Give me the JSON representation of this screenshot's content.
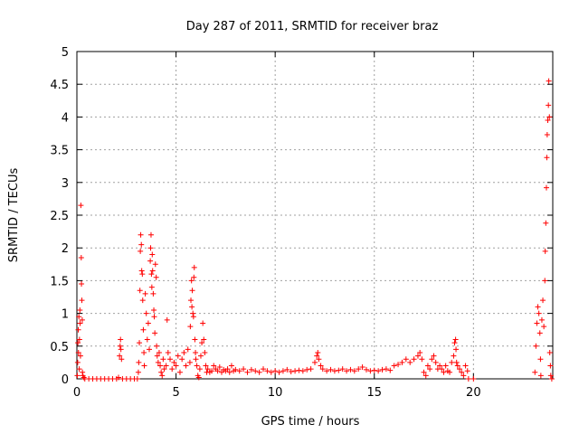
{
  "chart_data": {
    "type": "scatter",
    "title": "Day 287 of 2011, SRMTID for receiver braz",
    "xlabel": "GPS time / hours",
    "ylabel": "SRMTID / TECUs",
    "xlim": [
      0,
      24
    ],
    "ylim": [
      0,
      5
    ],
    "x_ticks": [
      0,
      5,
      10,
      15,
      20
    ],
    "x_tick_labels": [
      "0",
      "5",
      "10",
      "15",
      "20"
    ],
    "y_ticks": [
      0,
      0.5,
      1,
      1.5,
      2,
      2.5,
      3,
      3.5,
      4,
      4.5,
      5
    ],
    "y_tick_labels": [
      "0",
      "0.5",
      "1",
      "1.5",
      "2",
      "2.5",
      "3",
      "3.5",
      "4",
      "4.5",
      "5"
    ],
    "grid": true,
    "legend": "none",
    "marker": "plus",
    "series": [
      {
        "color": "#ff0000",
        "points": [
          [
            0.02,
            0.05
          ],
          [
            0.04,
            0.25
          ],
          [
            0.05,
            0.55
          ],
          [
            0.07,
            0.75
          ],
          [
            0.08,
            0.4
          ],
          [
            0.1,
            0.95
          ],
          [
            0.12,
            0.15
          ],
          [
            0.13,
            0.6
          ],
          [
            0.15,
            1.05
          ],
          [
            0.16,
            0.85
          ],
          [
            0.18,
            0.35
          ],
          [
            0.2,
            2.65
          ],
          [
            0.22,
            1.85
          ],
          [
            0.23,
            1.45
          ],
          [
            0.25,
            1.2
          ],
          [
            0.27,
            0.9
          ],
          [
            0.28,
            0.1
          ],
          [
            0.3,
            0.05
          ],
          [
            0.35,
            0.02
          ],
          [
            0.4,
            0.0
          ],
          [
            0.6,
            0.0
          ],
          [
            0.8,
            0.0
          ],
          [
            1.0,
            0.0
          ],
          [
            1.2,
            0.0
          ],
          [
            1.4,
            0.0
          ],
          [
            1.6,
            0.0
          ],
          [
            1.8,
            0.0
          ],
          [
            2.0,
            0.0
          ],
          [
            2.1,
            0.02
          ],
          [
            2.15,
            0.35
          ],
          [
            2.18,
            0.5
          ],
          [
            2.2,
            0.6
          ],
          [
            2.22,
            0.45
          ],
          [
            2.25,
            0.3
          ],
          [
            2.3,
            0.0
          ],
          [
            2.5,
            0.0
          ],
          [
            2.7,
            0.0
          ],
          [
            2.9,
            0.0
          ],
          [
            3.05,
            0.0
          ],
          [
            3.1,
            0.1
          ],
          [
            3.12,
            0.25
          ],
          [
            3.15,
            0.55
          ],
          [
            3.18,
            1.35
          ],
          [
            3.2,
            1.95
          ],
          [
            3.22,
            2.2
          ],
          [
            3.25,
            2.05
          ],
          [
            3.27,
            1.65
          ],
          [
            3.3,
            1.6
          ],
          [
            3.32,
            1.2
          ],
          [
            3.35,
            0.75
          ],
          [
            3.38,
            0.4
          ],
          [
            3.4,
            0.2
          ],
          [
            3.45,
            1.3
          ],
          [
            3.5,
            1.0
          ],
          [
            3.55,
            0.6
          ],
          [
            3.6,
            0.85
          ],
          [
            3.65,
            0.45
          ],
          [
            3.7,
            1.8
          ],
          [
            3.72,
            2.0
          ],
          [
            3.74,
            2.2
          ],
          [
            3.76,
            1.6
          ],
          [
            3.78,
            1.4
          ],
          [
            3.8,
            1.9
          ],
          [
            3.82,
            1.65
          ],
          [
            3.85,
            1.3
          ],
          [
            3.88,
            1.05
          ],
          [
            3.9,
            0.95
          ],
          [
            3.93,
            0.7
          ],
          [
            3.96,
            1.75
          ],
          [
            4.0,
            1.55
          ],
          [
            4.02,
            0.5
          ],
          [
            4.05,
            0.35
          ],
          [
            4.1,
            0.25
          ],
          [
            4.15,
            0.4
          ],
          [
            4.2,
            0.2
          ],
          [
            4.25,
            0.1
          ],
          [
            4.3,
            0.05
          ],
          [
            4.35,
            0.3
          ],
          [
            4.4,
            0.15
          ],
          [
            4.5,
            0.2
          ],
          [
            4.6,
            0.4
          ],
          [
            4.7,
            0.3
          ],
          [
            4.8,
            0.15
          ],
          [
            4.9,
            0.25
          ],
          [
            5.0,
            0.2
          ],
          [
            5.1,
            0.35
          ],
          [
            5.2,
            0.1
          ],
          [
            5.3,
            0.3
          ],
          [
            5.4,
            0.4
          ],
          [
            5.5,
            0.2
          ],
          [
            5.6,
            0.45
          ],
          [
            5.7,
            0.25
          ],
          [
            4.55,
            0.9
          ],
          [
            5.72,
            0.8
          ],
          [
            5.75,
            1.2
          ],
          [
            5.78,
            1.5
          ],
          [
            5.8,
            1.1
          ],
          [
            5.82,
            1.35
          ],
          [
            5.85,
            1.0
          ],
          [
            5.88,
            0.95
          ],
          [
            5.9,
            1.55
          ],
          [
            5.92,
            1.7
          ],
          [
            5.95,
            0.6
          ],
          [
            5.98,
            0.4
          ],
          [
            6.0,
            0.3
          ],
          [
            6.05,
            0.2
          ],
          [
            6.1,
            0.05
          ],
          [
            6.15,
            0.02
          ],
          [
            6.2,
            0.15
          ],
          [
            6.25,
            0.35
          ],
          [
            6.3,
            0.55
          ],
          [
            6.35,
            0.85
          ],
          [
            6.4,
            0.6
          ],
          [
            6.45,
            0.4
          ],
          [
            6.5,
            0.2
          ],
          [
            6.55,
            0.1
          ],
          [
            6.6,
            0.15
          ],
          [
            6.7,
            0.1
          ],
          [
            6.8,
            0.12
          ],
          [
            6.9,
            0.2
          ],
          [
            7.0,
            0.15
          ],
          [
            7.1,
            0.12
          ],
          [
            7.2,
            0.18
          ],
          [
            7.3,
            0.1
          ],
          [
            7.4,
            0.14
          ],
          [
            7.5,
            0.12
          ],
          [
            7.6,
            0.15
          ],
          [
            7.7,
            0.1
          ],
          [
            7.8,
            0.2
          ],
          [
            7.9,
            0.12
          ],
          [
            8.0,
            0.14
          ],
          [
            8.2,
            0.12
          ],
          [
            8.4,
            0.15
          ],
          [
            8.6,
            0.1
          ],
          [
            8.8,
            0.14
          ],
          [
            9.0,
            0.12
          ],
          [
            9.2,
            0.1
          ],
          [
            9.4,
            0.15
          ],
          [
            9.6,
            0.12
          ],
          [
            9.8,
            0.1
          ],
          [
            10.0,
            0.12
          ],
          [
            10.2,
            0.1
          ],
          [
            10.4,
            0.12
          ],
          [
            10.6,
            0.14
          ],
          [
            10.8,
            0.11
          ],
          [
            11.0,
            0.12
          ],
          [
            11.2,
            0.13
          ],
          [
            11.4,
            0.12
          ],
          [
            11.6,
            0.14
          ],
          [
            11.8,
            0.15
          ],
          [
            12.0,
            0.25
          ],
          [
            12.1,
            0.35
          ],
          [
            12.15,
            0.4
          ],
          [
            12.2,
            0.3
          ],
          [
            12.3,
            0.2
          ],
          [
            12.4,
            0.15
          ],
          [
            12.6,
            0.12
          ],
          [
            12.8,
            0.14
          ],
          [
            13.0,
            0.12
          ],
          [
            13.2,
            0.13
          ],
          [
            13.4,
            0.15
          ],
          [
            13.6,
            0.12
          ],
          [
            13.8,
            0.14
          ],
          [
            14.0,
            0.12
          ],
          [
            14.2,
            0.15
          ],
          [
            14.4,
            0.18
          ],
          [
            14.6,
            0.14
          ],
          [
            14.8,
            0.12
          ],
          [
            15.0,
            0.13
          ],
          [
            15.2,
            0.12
          ],
          [
            15.4,
            0.14
          ],
          [
            15.6,
            0.15
          ],
          [
            15.8,
            0.13
          ],
          [
            16.0,
            0.2
          ],
          [
            16.2,
            0.22
          ],
          [
            16.4,
            0.25
          ],
          [
            16.6,
            0.3
          ],
          [
            16.8,
            0.25
          ],
          [
            17.0,
            0.3
          ],
          [
            17.2,
            0.35
          ],
          [
            17.3,
            0.4
          ],
          [
            17.4,
            0.3
          ],
          [
            17.5,
            0.1
          ],
          [
            17.6,
            0.05
          ],
          [
            17.7,
            0.2
          ],
          [
            17.8,
            0.15
          ],
          [
            17.9,
            0.3
          ],
          [
            18.0,
            0.35
          ],
          [
            18.1,
            0.25
          ],
          [
            18.2,
            0.15
          ],
          [
            18.3,
            0.2
          ],
          [
            18.4,
            0.15
          ],
          [
            18.5,
            0.1
          ],
          [
            18.6,
            0.2
          ],
          [
            18.7,
            0.12
          ],
          [
            18.8,
            0.1
          ],
          [
            18.9,
            0.25
          ],
          [
            19.0,
            0.35
          ],
          [
            19.05,
            0.55
          ],
          [
            19.1,
            0.6
          ],
          [
            19.12,
            0.45
          ],
          [
            19.15,
            0.25
          ],
          [
            19.2,
            0.2
          ],
          [
            19.3,
            0.15
          ],
          [
            19.4,
            0.1
          ],
          [
            19.5,
            0.05
          ],
          [
            19.6,
            0.2
          ],
          [
            19.7,
            0.12
          ],
          [
            19.75,
            0.0
          ],
          [
            20.0,
            0.0
          ],
          [
            23.1,
            0.1
          ],
          [
            23.15,
            0.5
          ],
          [
            23.2,
            0.85
          ],
          [
            23.25,
            1.1
          ],
          [
            23.3,
            1.0
          ],
          [
            23.35,
            0.7
          ],
          [
            23.38,
            0.3
          ],
          [
            23.4,
            0.05
          ],
          [
            23.45,
            0.9
          ],
          [
            23.5,
            1.2
          ],
          [
            23.55,
            0.8
          ],
          [
            23.6,
            1.5
          ],
          [
            23.62,
            1.95
          ],
          [
            23.65,
            2.38
          ],
          [
            23.68,
            2.92
          ],
          [
            23.7,
            3.38
          ],
          [
            23.72,
            3.73
          ],
          [
            23.75,
            3.95
          ],
          [
            23.78,
            4.18
          ],
          [
            23.8,
            4.55
          ],
          [
            23.83,
            4.0
          ],
          [
            23.85,
            0.4
          ],
          [
            23.88,
            0.2
          ],
          [
            23.9,
            0.05
          ],
          [
            23.95,
            0.0
          ]
        ]
      }
    ]
  }
}
